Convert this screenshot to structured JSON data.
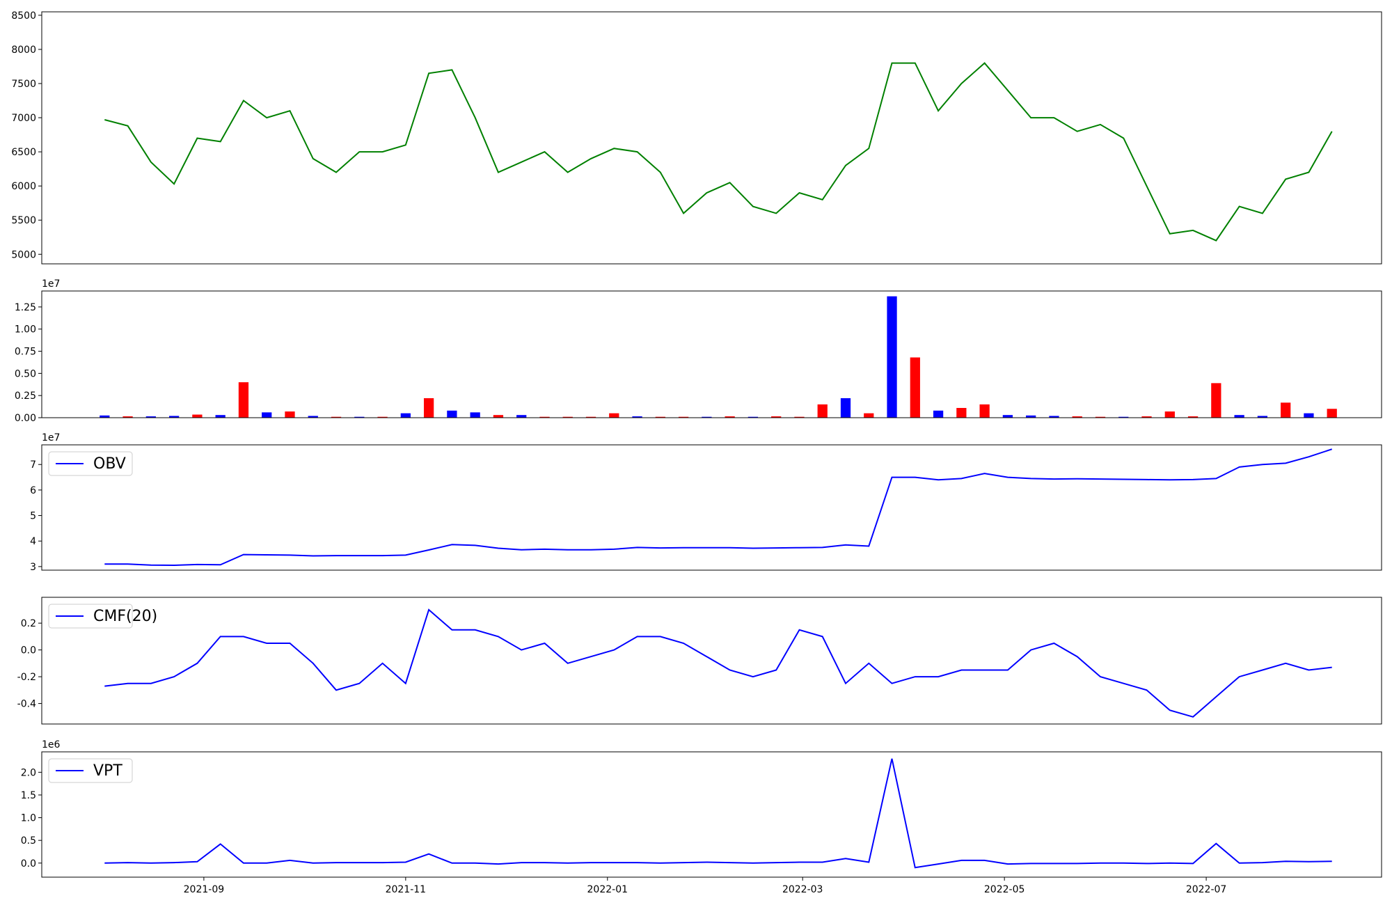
{
  "chart_data": [
    {
      "type": "line",
      "x": [
        "2021-08-02",
        "2021-08-09",
        "2021-08-16",
        "2021-08-23",
        "2021-08-30",
        "2021-09-06",
        "2021-09-13",
        "2021-09-20",
        "2021-09-27",
        "2021-10-04",
        "2021-10-11",
        "2021-10-18",
        "2021-10-25",
        "2021-11-01",
        "2021-11-08",
        "2021-11-15",
        "2021-11-22",
        "2021-11-29",
        "2021-12-06",
        "2021-12-13",
        "2021-12-20",
        "2021-12-27",
        "2022-01-03",
        "2022-01-10",
        "2022-01-17",
        "2022-01-24",
        "2022-01-31",
        "2022-02-07",
        "2022-02-14",
        "2022-02-21",
        "2022-02-28",
        "2022-03-07",
        "2022-03-14",
        "2022-03-21",
        "2022-03-28",
        "2022-04-04",
        "2022-04-11",
        "2022-04-18",
        "2022-04-25",
        "2022-05-02",
        "2022-05-09",
        "2022-05-16",
        "2022-05-23",
        "2022-05-30",
        "2022-06-06",
        "2022-06-13",
        "2022-06-20",
        "2022-06-27",
        "2022-07-04",
        "2022-07-11",
        "2022-07-18",
        "2022-07-25",
        "2022-08-01",
        "2022-08-08"
      ],
      "series": [
        {
          "color": "#008000",
          "values": [
            6970,
            6880,
            6350,
            6030,
            6700,
            6650,
            7250,
            7000,
            7100,
            6400,
            6200,
            6500,
            6500,
            6600,
            7650,
            7700,
            7000,
            6200,
            6350,
            6500,
            6200,
            6400,
            6550,
            6500,
            6200,
            5600,
            5900,
            6050,
            5700,
            5600,
            5900,
            5800,
            6300,
            6550,
            7800,
            7800,
            7100,
            7500,
            7800,
            7400,
            7000,
            7000,
            6800,
            6900,
            6700,
            6000,
            5300,
            5350,
            5200,
            5700,
            5600,
            6100,
            6200,
            6800
          ]
        }
      ],
      "xlim": [
        "2021-07-14",
        "2022-08-23"
      ],
      "ylim": [
        4860,
        8550
      ],
      "yticks": [
        5000,
        5500,
        6000,
        6500,
        7000,
        7500,
        8000,
        8500
      ]
    },
    {
      "type": "bar",
      "x": [
        "2021-08-02",
        "2021-08-09",
        "2021-08-16",
        "2021-08-23",
        "2021-08-30",
        "2021-09-06",
        "2021-09-13",
        "2021-09-20",
        "2021-09-27",
        "2021-10-04",
        "2021-10-11",
        "2021-10-18",
        "2021-10-25",
        "2021-11-01",
        "2021-11-08",
        "2021-11-15",
        "2021-11-22",
        "2021-11-29",
        "2021-12-06",
        "2021-12-13",
        "2021-12-20",
        "2021-12-27",
        "2022-01-03",
        "2022-01-10",
        "2022-01-17",
        "2022-01-24",
        "2022-01-31",
        "2022-02-07",
        "2022-02-14",
        "2022-02-21",
        "2022-02-28",
        "2022-03-07",
        "2022-03-14",
        "2022-03-21",
        "2022-03-28",
        "2022-04-04",
        "2022-04-11",
        "2022-04-18",
        "2022-04-25",
        "2022-05-02",
        "2022-05-09",
        "2022-05-16",
        "2022-05-23",
        "2022-05-30",
        "2022-06-06",
        "2022-06-13",
        "2022-06-20",
        "2022-06-27",
        "2022-07-04",
        "2022-07-11",
        "2022-07-18",
        "2022-07-25",
        "2022-08-01",
        "2022-08-08"
      ],
      "series": [
        {
          "values": [
            250000,
            150000,
            150000,
            200000,
            350000,
            300000,
            4000000,
            600000,
            700000,
            200000,
            100000,
            100000,
            100000,
            500000,
            2200000,
            800000,
            600000,
            300000,
            300000,
            100000,
            100000,
            100000,
            500000,
            150000,
            100000,
            100000,
            100000,
            150000,
            100000,
            150000,
            100000,
            1500000,
            2200000,
            500000,
            13700000,
            6800000,
            800000,
            1100000,
            1500000,
            300000,
            250000,
            200000,
            150000,
            100000,
            100000,
            150000,
            700000,
            150000,
            3900000,
            300000,
            200000,
            1700000,
            500000,
            1000000
          ],
          "bar_colors": [
            "#0000ff",
            "#ff0000",
            "#0000ff",
            "#0000ff",
            "#ff0000",
            "#0000ff",
            "#ff0000",
            "#0000ff",
            "#ff0000",
            "#0000ff",
            "#ff0000",
            "#0000ff",
            "#ff0000",
            "#0000ff",
            "#ff0000",
            "#0000ff",
            "#0000ff",
            "#ff0000",
            "#0000ff",
            "#ff0000",
            "#ff0000",
            "#ff0000",
            "#ff0000",
            "#0000ff",
            "#ff0000",
            "#ff0000",
            "#0000ff",
            "#ff0000",
            "#0000ff",
            "#ff0000",
            "#ff0000",
            "#ff0000",
            "#0000ff",
            "#ff0000",
            "#0000ff",
            "#ff0000",
            "#0000ff",
            "#ff0000",
            "#ff0000",
            "#0000ff",
            "#0000ff",
            "#0000ff",
            "#ff0000",
            "#ff0000",
            "#0000ff",
            "#ff0000",
            "#ff0000",
            "#ff0000",
            "#ff0000",
            "#0000ff",
            "#0000ff",
            "#ff0000",
            "#0000ff",
            "#ff0000"
          ]
        }
      ],
      "xlim": [
        "2021-07-14",
        "2022-08-23"
      ],
      "ylim": [
        0,
        14300000
      ],
      "y_offset_label": "1e7",
      "yticks": [
        {
          "value": 0,
          "label": "0.00"
        },
        {
          "value": 2500000,
          "label": "0.25"
        },
        {
          "value": 5000000,
          "label": "0.50"
        },
        {
          "value": 7500000,
          "label": "0.75"
        },
        {
          "value": 10000000,
          "label": "1.00"
        },
        {
          "value": 12500000,
          "label": "1.25"
        }
      ]
    },
    {
      "type": "line",
      "x": [
        "2021-08-02",
        "2021-08-09",
        "2021-08-16",
        "2021-08-23",
        "2021-08-30",
        "2021-09-06",
        "2021-09-13",
        "2021-09-20",
        "2021-09-27",
        "2021-10-04",
        "2021-10-11",
        "2021-10-18",
        "2021-10-25",
        "2021-11-01",
        "2021-11-08",
        "2021-11-15",
        "2021-11-22",
        "2021-11-29",
        "2021-12-06",
        "2021-12-13",
        "2021-12-20",
        "2021-12-27",
        "2022-01-03",
        "2022-01-10",
        "2022-01-17",
        "2022-01-24",
        "2022-01-31",
        "2022-02-07",
        "2022-02-14",
        "2022-02-21",
        "2022-02-28",
        "2022-03-07",
        "2022-03-14",
        "2022-03-21",
        "2022-03-28",
        "2022-04-04",
        "2022-04-11",
        "2022-04-18",
        "2022-04-25",
        "2022-05-02",
        "2022-05-09",
        "2022-05-16",
        "2022-05-23",
        "2022-05-30",
        "2022-06-06",
        "2022-06-13",
        "2022-06-20",
        "2022-06-27",
        "2022-07-04",
        "2022-07-11",
        "2022-07-18",
        "2022-07-25",
        "2022-08-01",
        "2022-08-08"
      ],
      "series": [
        {
          "name": "OBV",
          "color": "#0000ff",
          "values": [
            31000000,
            31000000,
            30600000,
            30500000,
            30800000,
            30700000,
            34700000,
            34600000,
            34500000,
            34200000,
            34300000,
            34300000,
            34300000,
            34500000,
            36500000,
            38600000,
            38300000,
            37200000,
            36600000,
            36800000,
            36600000,
            36600000,
            36800000,
            37500000,
            37300000,
            37400000,
            37400000,
            37400000,
            37200000,
            37300000,
            37400000,
            37500000,
            38500000,
            38000000,
            65000000,
            65000000,
            64000000,
            64500000,
            66500000,
            65000000,
            64500000,
            64300000,
            64400000,
            64300000,
            64200000,
            64100000,
            64000000,
            64100000,
            64500000,
            69000000,
            70000000,
            70500000,
            73000000,
            76000000
          ]
        }
      ],
      "xlim": [
        "2021-07-14",
        "2022-08-23"
      ],
      "ylim": [
        28600000,
        77700000
      ],
      "y_offset_label": "1e7",
      "legend": "upper left",
      "yticks": [
        {
          "value": 30000000,
          "label": "3"
        },
        {
          "value": 40000000,
          "label": "4"
        },
        {
          "value": 50000000,
          "label": "5"
        },
        {
          "value": 60000000,
          "label": "6"
        },
        {
          "value": 70000000,
          "label": "7"
        }
      ]
    },
    {
      "type": "line",
      "x": [
        "2021-08-02",
        "2021-08-09",
        "2021-08-16",
        "2021-08-23",
        "2021-08-30",
        "2021-09-06",
        "2021-09-13",
        "2021-09-20",
        "2021-09-27",
        "2021-10-04",
        "2021-10-11",
        "2021-10-18",
        "2021-10-25",
        "2021-11-01",
        "2021-11-08",
        "2021-11-15",
        "2021-11-22",
        "2021-11-29",
        "2021-12-06",
        "2021-12-13",
        "2021-12-20",
        "2021-12-27",
        "2022-01-03",
        "2022-01-10",
        "2022-01-17",
        "2022-01-24",
        "2022-01-31",
        "2022-02-07",
        "2022-02-14",
        "2022-02-21",
        "2022-02-28",
        "2022-03-07",
        "2022-03-14",
        "2022-03-21",
        "2022-03-28",
        "2022-04-04",
        "2022-04-11",
        "2022-04-18",
        "2022-04-25",
        "2022-05-02",
        "2022-05-09",
        "2022-05-16",
        "2022-05-23",
        "2022-05-30",
        "2022-06-06",
        "2022-06-13",
        "2022-06-20",
        "2022-06-27",
        "2022-07-04",
        "2022-07-11",
        "2022-07-18",
        "2022-07-25",
        "2022-08-01",
        "2022-08-08"
      ],
      "series": [
        {
          "name": "CMF(20)",
          "color": "#0000ff",
          "values": [
            -0.27,
            -0.25,
            -0.25,
            -0.2,
            -0.1,
            0.1,
            0.1,
            0.05,
            0.05,
            -0.1,
            -0.3,
            -0.25,
            -0.1,
            -0.25,
            0.3,
            0.15,
            0.15,
            0.1,
            0.0,
            0.05,
            -0.1,
            -0.05,
            0.0,
            0.1,
            0.1,
            0.05,
            -0.05,
            -0.15,
            -0.2,
            -0.15,
            0.15,
            0.1,
            -0.25,
            -0.1,
            -0.25,
            -0.2,
            -0.2,
            -0.15,
            -0.15,
            -0.15,
            0.0,
            0.05,
            -0.05,
            -0.2,
            -0.25,
            -0.3,
            -0.45,
            -0.5,
            -0.35,
            -0.2,
            -0.15,
            -0.1,
            -0.15,
            -0.13
          ]
        }
      ],
      "xlim": [
        "2021-07-14",
        "2022-08-23"
      ],
      "ylim": [
        -0.553,
        0.393
      ],
      "legend": "upper left",
      "yticks": [
        -0.4,
        -0.2,
        {
          "value": 0,
          "label": "0.0"
        },
        0.2
      ]
    },
    {
      "type": "line",
      "x": [
        "2021-08-02",
        "2021-08-09",
        "2021-08-16",
        "2021-08-23",
        "2021-08-30",
        "2021-09-06",
        "2021-09-13",
        "2021-09-20",
        "2021-09-27",
        "2021-10-04",
        "2021-10-11",
        "2021-10-18",
        "2021-10-25",
        "2021-11-01",
        "2021-11-08",
        "2021-11-15",
        "2021-11-22",
        "2021-11-29",
        "2021-12-06",
        "2021-12-13",
        "2021-12-20",
        "2021-12-27",
        "2022-01-03",
        "2022-01-10",
        "2022-01-17",
        "2022-01-24",
        "2022-01-31",
        "2022-02-07",
        "2022-02-14",
        "2022-02-21",
        "2022-02-28",
        "2022-03-07",
        "2022-03-14",
        "2022-03-21",
        "2022-03-28",
        "2022-04-04",
        "2022-04-11",
        "2022-04-18",
        "2022-04-25",
        "2022-05-02",
        "2022-05-09",
        "2022-05-16",
        "2022-05-23",
        "2022-05-30",
        "2022-06-06",
        "2022-06-13",
        "2022-06-20",
        "2022-06-27",
        "2022-07-04",
        "2022-07-11",
        "2022-07-18",
        "2022-07-25",
        "2022-08-01",
        "2022-08-08"
      ],
      "series": [
        {
          "name": "VPT",
          "color": "#0000ff",
          "values": [
            0,
            10000,
            0,
            10000,
            30000,
            420000,
            0,
            0,
            60000,
            0,
            10000,
            10000,
            10000,
            20000,
            200000,
            0,
            0,
            -20000,
            10000,
            10000,
            0,
            10000,
            10000,
            10000,
            0,
            10000,
            20000,
            10000,
            0,
            10000,
            20000,
            20000,
            100000,
            20000,
            2300000,
            -100000,
            -20000,
            60000,
            60000,
            -20000,
            -10000,
            -10000,
            -10000,
            0,
            0,
            -10000,
            0,
            -10000,
            430000,
            0,
            10000,
            40000,
            30000,
            40000
          ]
        }
      ],
      "xlim": [
        "2021-07-14",
        "2022-08-23"
      ],
      "ylim": [
        -310000,
        2450000
      ],
      "y_offset_label": "1e6",
      "legend": "upper left",
      "yticks": [
        {
          "value": 0,
          "label": "0.0"
        },
        {
          "value": 500000,
          "label": "0.5"
        },
        {
          "value": 1000000,
          "label": "1.0"
        },
        {
          "value": 1500000,
          "label": "1.5"
        },
        {
          "value": 2000000,
          "label": "2.0"
        }
      ],
      "xticks": [
        "2021-09",
        "2021-11",
        "2022-01",
        "2022-03",
        "2022-05",
        "2022-07"
      ]
    }
  ]
}
